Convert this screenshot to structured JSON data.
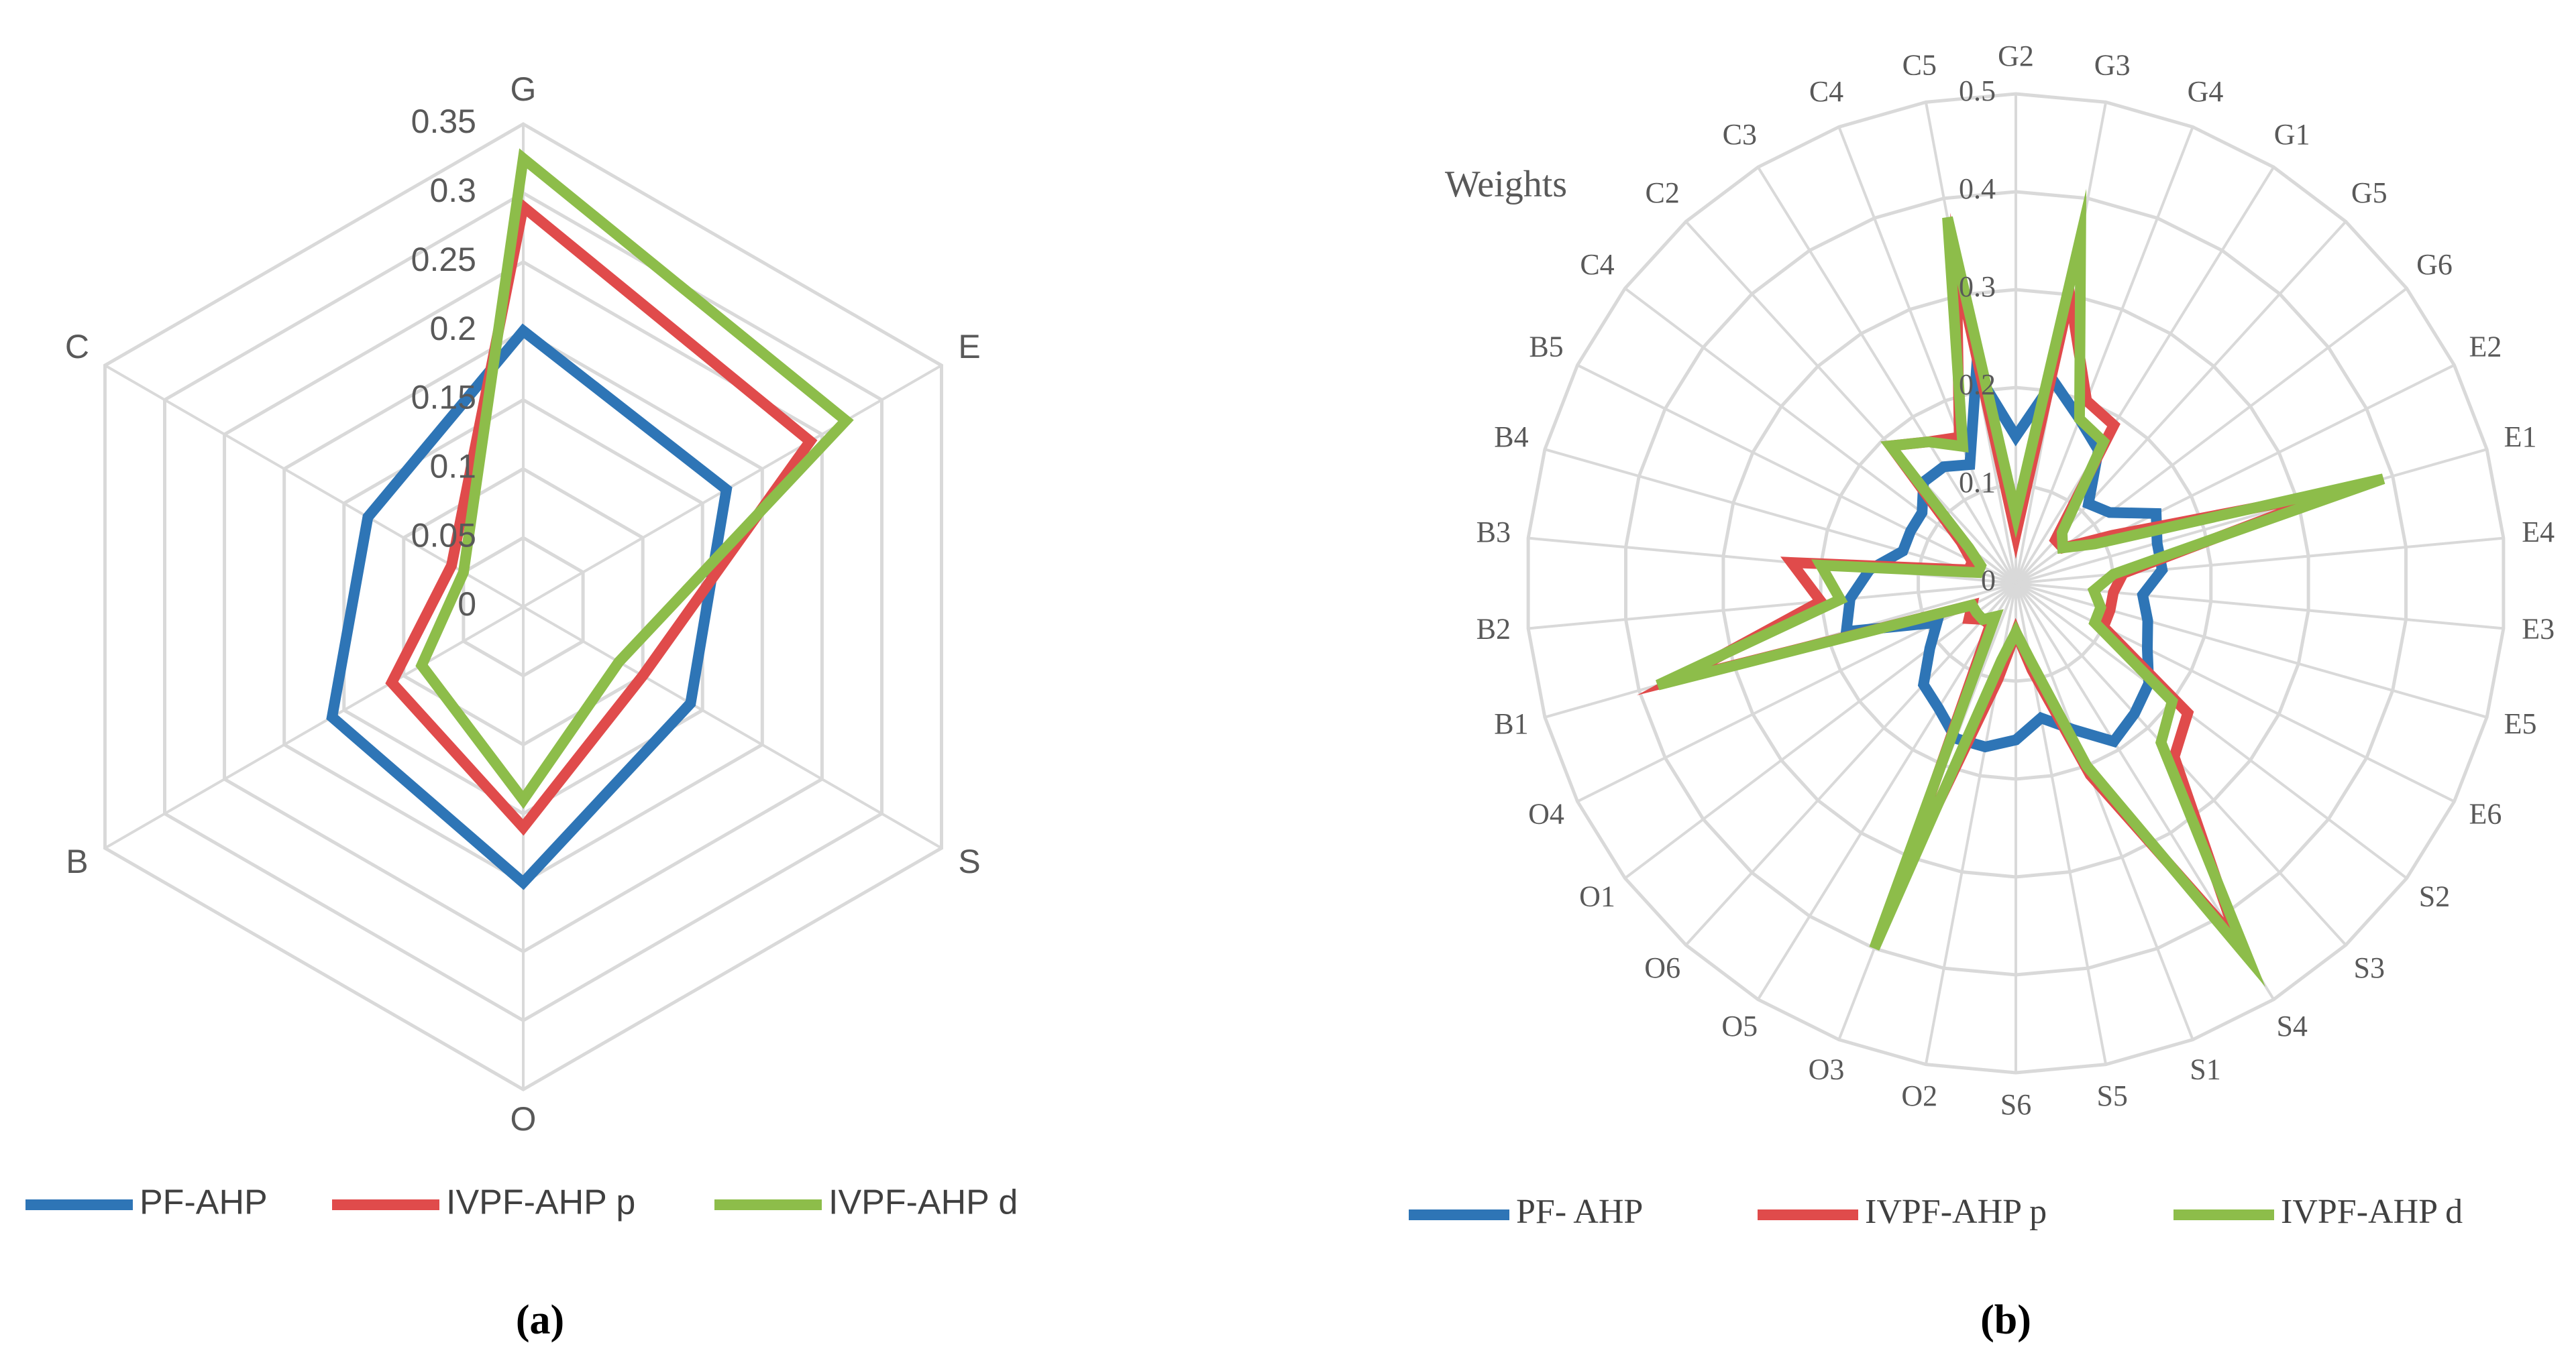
{
  "chart_data": [
    {
      "type": "radar",
      "caption": "(a)",
      "categories": [
        "G",
        "E",
        "S",
        "O",
        "B",
        "C"
      ],
      "ticks": [
        "0",
        "0.05",
        "0.1",
        "0.15",
        "0.2",
        "0.25",
        "0.3",
        "0.35"
      ],
      "range": [
        0,
        0.35
      ],
      "grid": true,
      "legend_position": "bottom",
      "series": [
        {
          "name": "PF-AHP",
          "color": "#2e75b6",
          "values": [
            0.2,
            0.17,
            0.14,
            0.2,
            0.16,
            0.13
          ]
        },
        {
          "name": "IVPF-AHP p",
          "color": "#e04b4b",
          "values": [
            0.29,
            0.24,
            0.1,
            0.16,
            0.11,
            0.06
          ]
        },
        {
          "name": "IVPF-AHP d",
          "color": "#8dbd4a",
          "values": [
            0.325,
            0.27,
            0.08,
            0.14,
            0.085,
            0.05
          ]
        }
      ]
    },
    {
      "type": "radar",
      "caption": "(b)",
      "axis_title": "Weights",
      "categories": [
        "G2",
        "G3",
        "G4",
        "G1",
        "G5",
        "G6",
        "E2",
        "E1",
        "E4",
        "E3",
        "E5",
        "E6",
        "S2",
        "S3",
        "S4",
        "S1",
        "S5",
        "S6",
        "O2",
        "O3",
        "O5",
        "O6",
        "O1",
        "O4",
        "B1",
        "B2",
        "B3",
        "B4",
        "B5",
        "C4",
        "C2",
        "C3",
        "C4",
        "C5"
      ],
      "ticks": [
        "0",
        "0.1",
        "0.2",
        "0.3",
        "0.4",
        "0.5"
      ],
      "range": [
        0,
        0.5
      ],
      "grid": true,
      "legend_position": "bottom",
      "series": [
        {
          "name": "PF- AHP",
          "color": "#2e75b6",
          "values": [
            0.15,
            0.21,
            0.18,
            0.16,
            0.11,
            0.12,
            0.16,
            0.15,
            0.15,
            0.13,
            0.14,
            0.15,
            0.17,
            0.18,
            0.19,
            0.16,
            0.14,
            0.16,
            0.17,
            0.17,
            0.15,
            0.14,
            0.11,
            0.09,
            0.18,
            0.17,
            0.15,
            0.12,
            0.12,
            0.12,
            0.14,
            0.14,
            0.13,
            0.22
          ]
        },
        {
          "name": "IVPF-AHP p",
          "color": "#e04b4b",
          "values": [
            0.05,
            0.3,
            0.2,
            0.19,
            0.06,
            0.06,
            0.11,
            0.34,
            0.11,
            0.1,
            0.1,
            0.1,
            0.22,
            0.24,
            0.43,
            0.21,
            0.09,
            0.05,
            0.1,
            0.33,
            0.05,
            0.05,
            0.06,
            0.05,
            0.36,
            0.2,
            0.23,
            0.05,
            0.05,
            0.07,
            0.19,
            0.17,
            0.16,
            0.33
          ]
        },
        {
          "name": "IVPF-AHP d",
          "color": "#8dbd4a",
          "values": [
            0.07,
            0.36,
            0.18,
            0.17,
            0.07,
            0.06,
            0.09,
            0.39,
            0.1,
            0.08,
            0.09,
            0.09,
            0.2,
            0.22,
            0.45,
            0.2,
            0.08,
            0.05,
            0.08,
            0.4,
            0.04,
            0.05,
            0.05,
            0.05,
            0.38,
            0.18,
            0.2,
            0.04,
            0.04,
            0.06,
            0.19,
            0.17,
            0.15,
            0.38
          ]
        }
      ]
    }
  ]
}
